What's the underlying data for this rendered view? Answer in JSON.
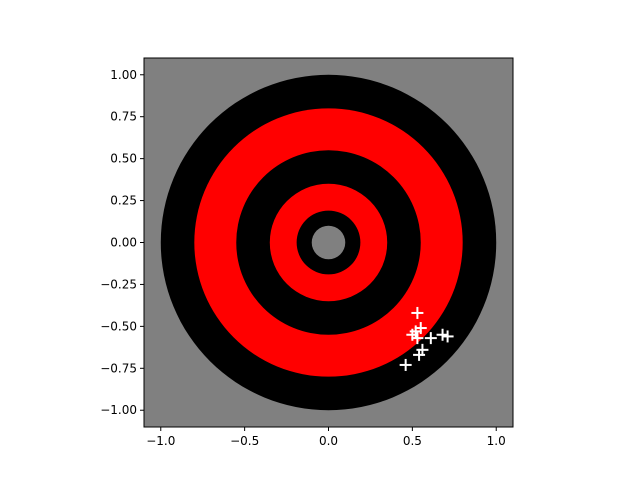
{
  "chart_data": {
    "type": "scatter",
    "title": "",
    "xlabel": "",
    "ylabel": "",
    "xlim": [
      -1.1,
      1.1
    ],
    "ylim": [
      -1.1,
      1.1
    ],
    "grid": false,
    "legend": "none",
    "x_ticks": [
      {
        "value": -1.0,
        "label": "−1.0"
      },
      {
        "value": -0.5,
        "label": "−0.5"
      },
      {
        "value": 0.0,
        "label": "0.0"
      },
      {
        "value": 0.5,
        "label": "0.5"
      },
      {
        "value": 1.0,
        "label": "1.0"
      }
    ],
    "y_ticks": [
      {
        "value": 1.0,
        "label": "1.00"
      },
      {
        "value": 0.75,
        "label": "0.75"
      },
      {
        "value": 0.5,
        "label": "0.50"
      },
      {
        "value": 0.25,
        "label": "0.25"
      },
      {
        "value": 0.0,
        "label": "0.00"
      },
      {
        "value": -0.25,
        "label": "−0.25"
      },
      {
        "value": -0.5,
        "label": "−0.50"
      },
      {
        "value": -0.75,
        "label": "−0.75"
      },
      {
        "value": -1.0,
        "label": "−1.00"
      }
    ],
    "background_color": "#808080",
    "target_rings": [
      {
        "radius": 1.0,
        "color": "#000000"
      },
      {
        "radius": 0.8,
        "color": "#ff0000"
      },
      {
        "radius": 0.55,
        "color": "#000000"
      },
      {
        "radius": 0.35,
        "color": "#ff0000"
      },
      {
        "radius": 0.19,
        "color": "#000000"
      },
      {
        "radius": 0.1,
        "color": "#808080"
      }
    ],
    "marker": "+",
    "marker_color": "#ffffff",
    "points": [
      {
        "x": 0.53,
        "y": -0.42
      },
      {
        "x": 0.55,
        "y": -0.51
      },
      {
        "x": 0.52,
        "y": -0.53
      },
      {
        "x": 0.5,
        "y": -0.55
      },
      {
        "x": 0.53,
        "y": -0.57
      },
      {
        "x": 0.61,
        "y": -0.57
      },
      {
        "x": 0.68,
        "y": -0.55
      },
      {
        "x": 0.71,
        "y": -0.56
      },
      {
        "x": 0.56,
        "y": -0.64
      },
      {
        "x": 0.54,
        "y": -0.67
      },
      {
        "x": 0.46,
        "y": -0.73
      }
    ]
  }
}
